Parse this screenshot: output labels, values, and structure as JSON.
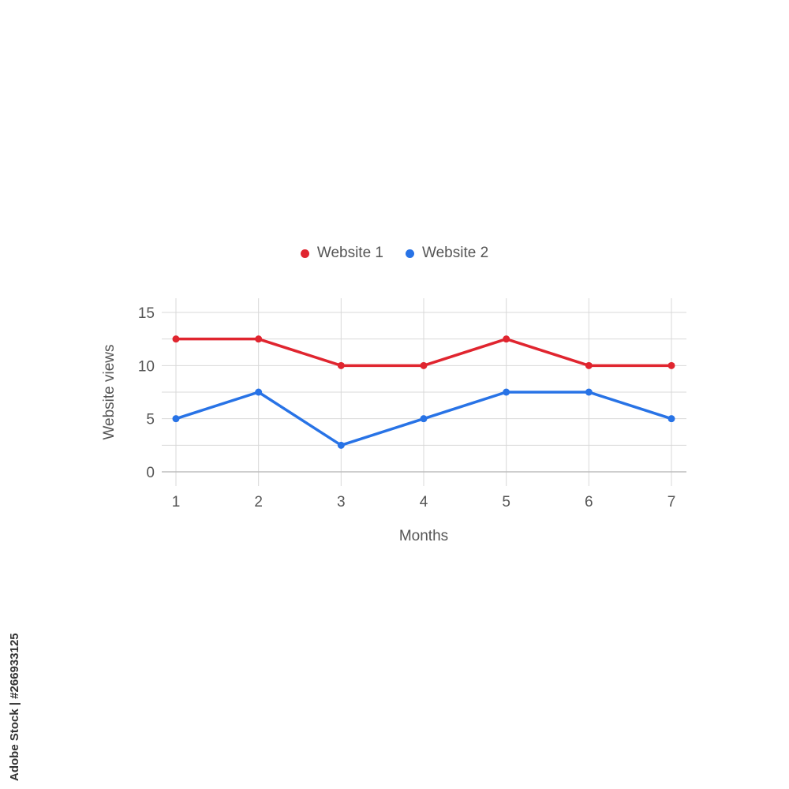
{
  "chart_data": {
    "type": "line",
    "title": "",
    "xlabel": "Months",
    "ylabel": "Website views",
    "x": [
      1,
      2,
      3,
      4,
      5,
      6,
      7
    ],
    "x_tick_labels": [
      "1",
      "2",
      "3",
      "4",
      "5",
      "6",
      "7"
    ],
    "y_tick_labels": [
      "0",
      "5",
      "10",
      "15"
    ],
    "y_ticks": [
      0,
      5,
      10,
      15
    ],
    "ylim": [
      0,
      15
    ],
    "xlim": [
      1,
      7
    ],
    "grid": true,
    "legend_position": "top-center",
    "series": [
      {
        "name": "Website 1",
        "color": "#e0252f",
        "values": [
          12.5,
          12.5,
          10,
          10,
          12.5,
          10,
          10
        ]
      },
      {
        "name": "Website 2",
        "color": "#2873e6",
        "values": [
          5,
          7.5,
          2.5,
          5,
          7.5,
          7.5,
          5
        ]
      }
    ]
  },
  "watermark": {
    "stock_id": "Adobe Stock | #266933125"
  }
}
